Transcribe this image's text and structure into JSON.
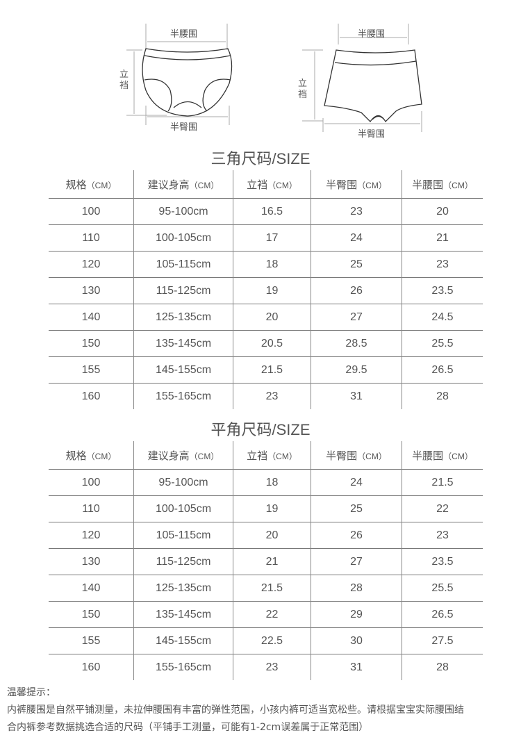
{
  "diagrams": {
    "briefs": {
      "waist": "半腰围",
      "rise": "立裆",
      "hip": "半臀围"
    },
    "boxers": {
      "waist": "半腰围",
      "rise": "立裆",
      "hip": "半臀围"
    }
  },
  "tables": [
    {
      "title": "三角尺码/SIZE",
      "headers": [
        {
          "t": "规格",
          "u": "（CM）"
        },
        {
          "t": "建议身高",
          "u": "（CM）"
        },
        {
          "t": "立裆",
          "u": "（CM）"
        },
        {
          "t": "半臀围",
          "u": "（CM）"
        },
        {
          "t": "半腰围",
          "u": "（CM）"
        }
      ],
      "rows": [
        [
          "100",
          "95-100cm",
          "16.5",
          "23",
          "20"
        ],
        [
          "110",
          "100-105cm",
          "17",
          "24",
          "21"
        ],
        [
          "120",
          "105-115cm",
          "18",
          "25",
          "23"
        ],
        [
          "130",
          "115-125cm",
          "19",
          "26",
          "23.5"
        ],
        [
          "140",
          "125-135cm",
          "20",
          "27",
          "24.5"
        ],
        [
          "150",
          "135-145cm",
          "20.5",
          "28.5",
          "25.5"
        ],
        [
          "155",
          "145-155cm",
          "21.5",
          "29.5",
          "26.5"
        ],
        [
          "160",
          "155-165cm",
          "23",
          "31",
          "28"
        ]
      ]
    },
    {
      "title": "平角尺码/SIZE",
      "headers": [
        {
          "t": "规格",
          "u": "（CM）"
        },
        {
          "t": "建议身高",
          "u": "（CM）"
        },
        {
          "t": "立裆",
          "u": "（CM）"
        },
        {
          "t": "半臀围",
          "u": "（CM）"
        },
        {
          "t": "半腰围",
          "u": "（CM）"
        }
      ],
      "rows": [
        [
          "100",
          "95-100cm",
          "18",
          "24",
          "21.5"
        ],
        [
          "110",
          "100-105cm",
          "19",
          "25",
          "22"
        ],
        [
          "120",
          "105-115cm",
          "20",
          "26",
          "23"
        ],
        [
          "130",
          "115-125cm",
          "21",
          "27",
          "23.5"
        ],
        [
          "140",
          "125-135cm",
          "21.5",
          "28",
          "25.5"
        ],
        [
          "150",
          "135-145cm",
          "22",
          "29",
          "26.5"
        ],
        [
          "155",
          "145-155cm",
          "22.5",
          "30",
          "27.5"
        ],
        [
          "160",
          "155-165cm",
          "23",
          "31",
          "28"
        ]
      ]
    }
  ],
  "note": {
    "heading": "温馨提示：",
    "line1": "内裤腰围是自然平铺测量，未拉伸腰围有丰富的弹性范围，小孩内裤可适当宽松些。请根据宝宝实际腰围结",
    "line2": "合内裤参考数据挑选合适的尺码（平铺手工测量，可能有1-2cm误差属于正常范围）"
  }
}
